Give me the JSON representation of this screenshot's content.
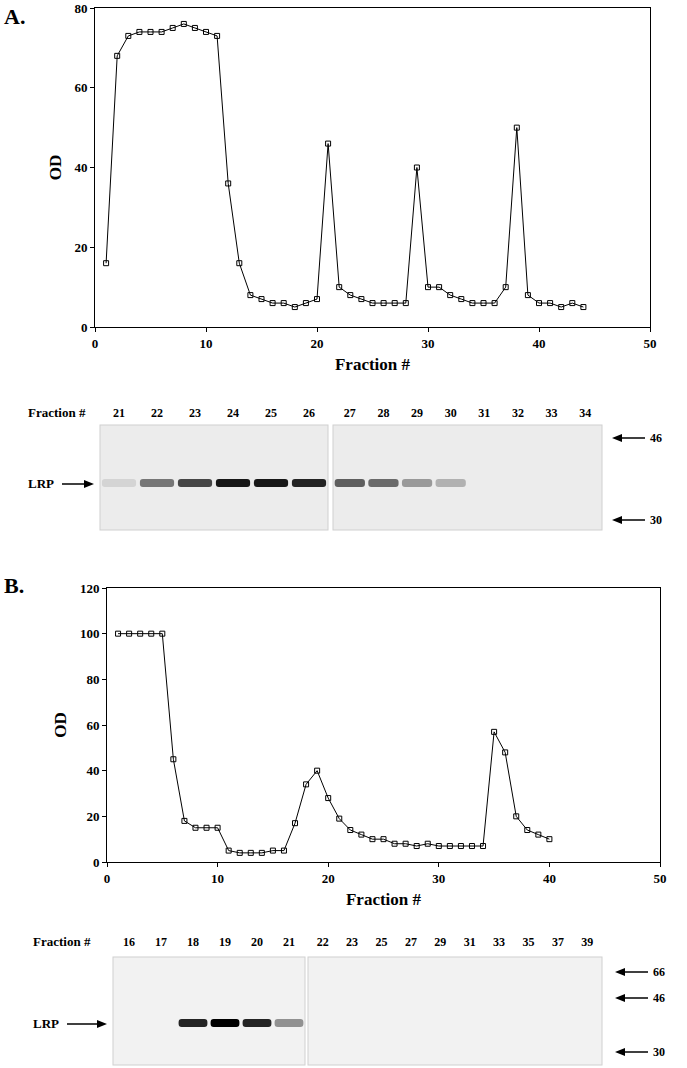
{
  "chart_data": [
    {
      "type": "line",
      "panel": "A.",
      "x_label": "Fraction #",
      "y_label": "OD",
      "color": "#000000",
      "marker": "square",
      "grid": false,
      "x": [
        1,
        2,
        3,
        4,
        5,
        6,
        7,
        8,
        9,
        10,
        11,
        12,
        13,
        14,
        15,
        16,
        17,
        18,
        19,
        20,
        21,
        22,
        23,
        24,
        25,
        26,
        27,
        28,
        29,
        30,
        31,
        32,
        33,
        34,
        35,
        36,
        37,
        38,
        39,
        40,
        41,
        42,
        43,
        44
      ],
      "values": [
        16,
        68,
        73,
        74,
        74,
        74,
        75,
        76,
        75,
        74,
        73,
        36,
        16,
        8,
        7,
        6,
        6,
        5,
        6,
        7,
        46,
        10,
        8,
        7,
        6,
        6,
        6,
        6,
        40,
        10,
        10,
        8,
        7,
        6,
        6,
        6,
        10,
        50,
        8,
        6,
        6,
        5,
        6,
        5
      ],
      "xlim": [
        0,
        50
      ],
      "xticks": [
        0,
        10,
        20,
        30,
        40,
        50
      ],
      "ylim": [
        0,
        80
      ],
      "yticks": [
        0,
        20,
        40,
        60,
        80
      ]
    },
    {
      "type": "line",
      "panel": "B.",
      "x_label": "Fraction #",
      "y_label": "OD",
      "color": "#000000",
      "marker": "square",
      "grid": false,
      "x": [
        1,
        2,
        3,
        4,
        5,
        6,
        7,
        8,
        9,
        10,
        11,
        12,
        13,
        14,
        15,
        16,
        17,
        18,
        19,
        20,
        21,
        22,
        23,
        24,
        25,
        26,
        27,
        28,
        29,
        30,
        31,
        32,
        33,
        34,
        35,
        36,
        37,
        38,
        39,
        40
      ],
      "values": [
        100,
        100,
        100,
        100,
        100,
        45,
        18,
        15,
        15,
        15,
        5,
        4,
        4,
        4,
        5,
        5,
        17,
        34,
        40,
        28,
        19,
        14,
        12,
        10,
        10,
        8,
        8,
        7,
        8,
        7,
        7,
        7,
        7,
        7,
        57,
        48,
        20,
        14,
        12,
        10
      ],
      "xlim": [
        0,
        50
      ],
      "xticks": [
        0,
        10,
        20,
        30,
        40,
        50
      ],
      "ylim": [
        0,
        120
      ],
      "yticks": [
        0,
        20,
        40,
        60,
        80,
        100,
        120
      ]
    }
  ],
  "blots": [
    {
      "lane_header": "Fraction #",
      "band_label": "LRP",
      "markers": [
        46,
        30
      ],
      "groups": [
        {
          "lanes": [
            21,
            22,
            23,
            24,
            25,
            26
          ],
          "band_intensity": [
            0.1,
            0.5,
            0.7,
            0.9,
            0.9,
            0.85
          ]
        },
        {
          "lanes": [
            27,
            28,
            29,
            30,
            31,
            32,
            33,
            34
          ],
          "band_intensity": [
            0.6,
            0.55,
            0.35,
            0.25,
            0,
            0,
            0,
            0
          ]
        }
      ]
    },
    {
      "lane_header": "Fraction #",
      "band_label": "LRP",
      "markers": [
        66,
        46,
        30
      ],
      "groups": [
        {
          "lanes": [
            16,
            17,
            18,
            19,
            20,
            21
          ],
          "band_intensity": [
            0,
            0,
            0.85,
            1,
            0.85,
            0.4
          ]
        },
        {
          "lanes": [
            22,
            23,
            25,
            27,
            29,
            31,
            33,
            35,
            37,
            39
          ],
          "band_intensity": [
            0,
            0,
            0,
            0,
            0,
            0,
            0,
            0,
            0,
            0
          ]
        }
      ]
    }
  ]
}
